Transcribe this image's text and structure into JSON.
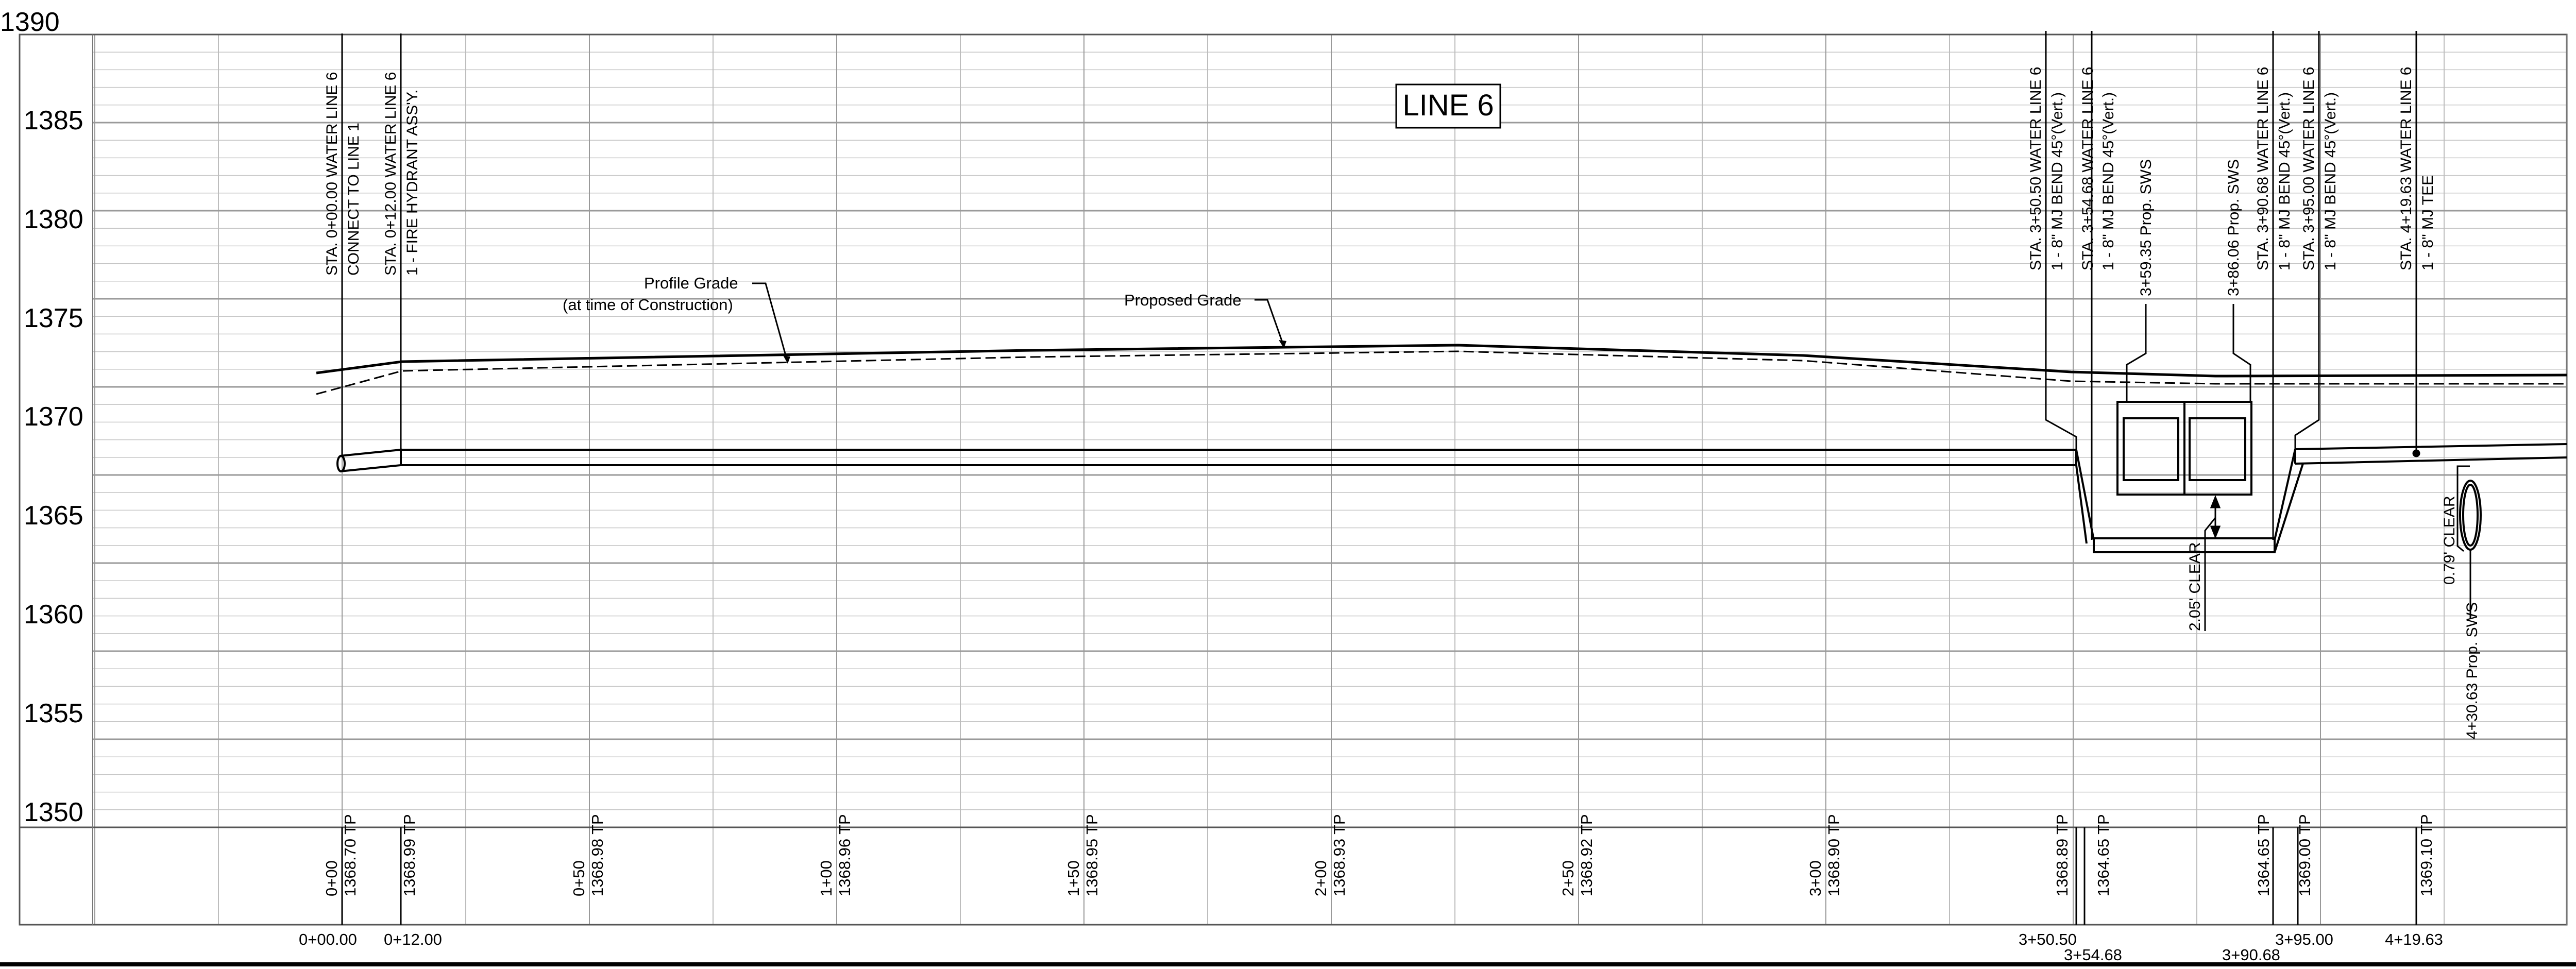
{
  "title": "LINE 6",
  "elevation_axis": {
    "ticks": [
      1390,
      1385,
      1380,
      1375,
      1370,
      1365,
      1360,
      1355,
      1350
    ],
    "ylim": [
      1345,
      1390
    ]
  },
  "stations_axis": {
    "major_ticks": [
      "0+00",
      "0+50",
      "1+00",
      "1+50",
      "2+00",
      "2+50",
      "3+00"
    ]
  },
  "grade_labels": {
    "profile_grade_1": "Profile Grade",
    "profile_grade_2": "(at time of Construction)",
    "proposed_grade": "Proposed Grade"
  },
  "annotations": {
    "a1_l1": "STA. 0+00.00 WATER LINE 6",
    "a1_l2": "CONNECT TO LINE 1",
    "a2_l1": "STA. 0+12.00 WATER LINE 6",
    "a2_l2": "1 - FIRE HYDRANT ASS'Y.",
    "a3_l1": "STA. 3+50.50 WATER LINE 6",
    "a3_l2": "1 - 8\" MJ BEND 45°(Vert.)",
    "a4_l1": "STA. 3+54.68 WATER LINE 6",
    "a4_l2": "1 - 8\" MJ BEND 45°(Vert.)",
    "a5": "3+59.35 Prop. SWS",
    "a6": "3+86.06 Prop. SWS",
    "a7_l1": "STA. 3+90.68 WATER LINE 6",
    "a7_l2": "1 - 8\" MJ BEND 45°(Vert.)",
    "a8_l1": "STA. 3+95.00 WATER LINE 6",
    "a8_l2": "1 - 8\" MJ BEND 45°(Vert.)",
    "a9_l1": "STA. 4+19.63 WATER LINE 6",
    "a9_l2": "1 - 8\" MJ TEE",
    "clear1": "2.05' CLEAR",
    "clear2": "0.79' CLEAR",
    "sws2": "4+30.63 Prop. SWS"
  },
  "band": {
    "b0_sta": "0+00",
    "b0_tp": "1368.70 TP",
    "b1_tp": "1368.99 TP",
    "b2_sta": "0+50",
    "b2_tp": "1368.98 TP",
    "b3_sta": "1+00",
    "b3_tp": "1368.96 TP",
    "b4_sta": "1+50",
    "b4_tp": "1368.95 TP",
    "b5_sta": "2+00",
    "b5_tp": "1368.93 TP",
    "b6_sta": "2+50",
    "b6_tp": "1368.92 TP",
    "b7_sta": "3+00",
    "b7_tp": "1368.90 TP",
    "b8_tp": "1368.89 TP",
    "b9_tp": "1364.65 TP",
    "b10_tp": "1364.65 TP",
    "b11_tp": "1369.00 TP",
    "b12_tp": "1369.10 TP"
  },
  "station_labels": {
    "s1": "0+00.00",
    "s2": "0+12.00",
    "s3": "3+50.50",
    "s4": "3+54.68",
    "s5": "3+90.68",
    "s6": "3+95.00",
    "s7": "4+19.63"
  }
}
